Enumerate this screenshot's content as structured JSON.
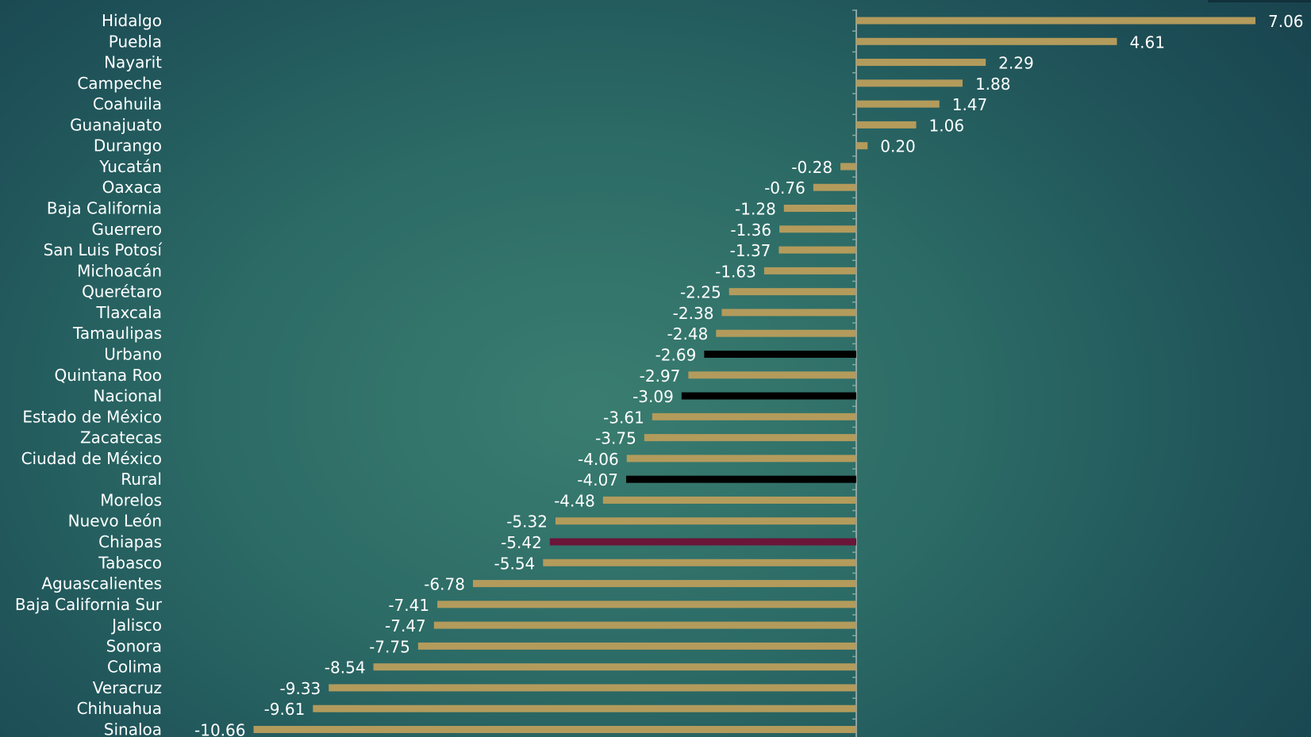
{
  "chart_data": {
    "type": "bar",
    "orientation": "horizontal",
    "categories": [
      "Hidalgo",
      "Puebla",
      "Nayarit",
      "Campeche",
      "Coahuila",
      "Guanajuato",
      "Durango",
      "Yucatán",
      "Oaxaca",
      "Baja California",
      "Guerrero",
      "San Luis Potosí",
      "Michoacán",
      "Querétaro",
      "Tlaxcala",
      "Tamaulipas",
      "Urbano",
      "Quintana Roo",
      "Nacional",
      "Estado de México",
      "Zacatecas",
      "Ciudad de México",
      "Rural",
      "Morelos",
      "Nuevo León",
      "Chiapas",
      "Tabasco",
      "Aguascalientes",
      "Baja California Sur",
      "Jalisco",
      "Sonora",
      "Colima",
      "Veracruz",
      "Chihuahua",
      "Sinaloa"
    ],
    "values": [
      7.06,
      4.61,
      2.29,
      1.88,
      1.47,
      1.06,
      0.2,
      -0.28,
      -0.76,
      -1.28,
      -1.36,
      -1.37,
      -1.63,
      -2.25,
      -2.38,
      -2.48,
      -2.69,
      -2.97,
      -3.09,
      -3.61,
      -3.75,
      -4.06,
      -4.07,
      -4.48,
      -5.32,
      -5.42,
      -5.54,
      -6.78,
      -7.41,
      -7.47,
      -7.75,
      -8.54,
      -9.33,
      -9.61,
      -10.66
    ],
    "value_labels": [
      "7.06",
      "4.61",
      "2.29",
      "1.88",
      "1.47",
      "1.06",
      "0.20",
      "-0.28",
      "-0.76",
      "-1.28",
      "-1.36",
      "-1.37",
      "-1.63",
      "-2.25",
      "-2.38",
      "-2.48",
      "-2.69",
      "-2.97",
      "-3.09",
      "-3.61",
      "-3.75",
      "-4.06",
      "-4.07",
      "-4.48",
      "-5.32",
      "-5.42",
      "-5.54",
      "-6.78",
      "-7.41",
      "-7.47",
      "-7.75",
      "-8.54",
      "-9.33",
      "-9.61",
      "-10.66"
    ],
    "highlight": {
      "Urbano": "black",
      "Nacional": "black",
      "Rural": "black",
      "Chiapas": "maroon"
    },
    "colors": {
      "default": "#b39b5c",
      "black": "#000000",
      "maroon": "#6b1538",
      "axis": "#8aa6a3",
      "text": "#ffffff",
      "background": "#2f6e68"
    },
    "xlim": [
      -10.66,
      7.06
    ],
    "title": "",
    "xlabel": "",
    "ylabel": "",
    "grid": false,
    "legend": "none",
    "show_value_labels": true
  }
}
